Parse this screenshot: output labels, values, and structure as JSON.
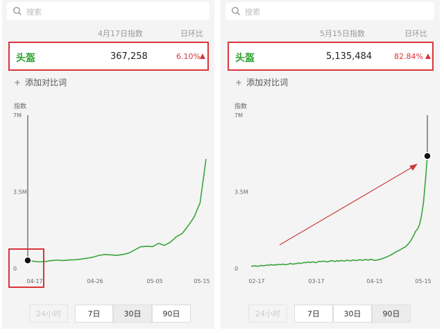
{
  "panels": [
    {
      "search": {
        "placeholder": "搜索"
      },
      "header": {
        "date_col": "4月17日指数",
        "ratio_col": "日环比"
      },
      "row": {
        "keyword": "头盔",
        "value": "367,258",
        "change": "6.10%",
        "direction": "up"
      },
      "add_compare": {
        "plus": "+",
        "label": "添加对比词"
      },
      "chart_data": {
        "type": "line",
        "ylabel": "指数",
        "y_ticks": [
          "7M",
          "3.5M",
          "0"
        ],
        "x_ticks": [
          "04-17",
          "04-26",
          "05-05",
          "05-15"
        ],
        "ylim": [
          0,
          7000000
        ],
        "series": [
          {
            "values": [
              367258,
              330000,
              300000,
              320000,
              360000,
              380000,
              360000,
              390000,
              400000,
              430000,
              470000,
              520000,
              600000,
              640000,
              620000,
              600000,
              640000,
              700000,
              850000,
              990000,
              1010000,
              1000000,
              1150000,
              1050000,
              1200000,
              1450000,
              1600000,
              1950000,
              2350000,
              3000000,
              5000000
            ]
          }
        ],
        "cursor_index": 0,
        "line_color": "#3aa33a",
        "highlight_box": true
      },
      "range_buttons": [
        {
          "label": "24小时",
          "state": "disabled"
        },
        {
          "label": "7日",
          "state": "normal"
        },
        {
          "label": "30日",
          "state": "active"
        },
        {
          "label": "90日",
          "state": "normal"
        }
      ]
    },
    {
      "search": {
        "placeholder": "搜索"
      },
      "header": {
        "date_col": "5月15日指数",
        "ratio_col": "日环比"
      },
      "row": {
        "keyword": "头盔",
        "value": "5,135,484",
        "change": "82.84%",
        "direction": "up"
      },
      "add_compare": {
        "plus": "+",
        "label": "添加对比词"
      },
      "chart_data": {
        "type": "line",
        "ylabel": "指数",
        "y_ticks": [
          "7M",
          "3.5M",
          "0"
        ],
        "x_ticks": [
          "02-17",
          "03-17",
          "04-15",
          "05-15"
        ],
        "ylim": [
          0,
          7000000
        ],
        "series": [
          {
            "values": [
              100000,
              110000,
              120000,
              100000,
              110000,
              140000,
              120000,
              130000,
              160000,
              140000,
              180000,
              150000,
              170000,
              160000,
              190000,
              170000,
              200000,
              180000,
              170000,
              200000,
              230000,
              200000,
              210000,
              220000,
              250000,
              230000,
              240000,
              280000,
              260000,
              300000,
              270000,
              290000,
              300000,
              260000,
              300000,
              330000,
              310000,
              340000,
              320000,
              300000,
              330000,
              360000,
              340000,
              320000,
              360000,
              330000,
              370000,
              350000,
              340000,
              380000,
              360000,
              350000,
              390000,
              370000,
              360000,
              400000,
              390000,
              370000,
              410000,
              400000,
              380000,
              420000,
              400000,
              370000,
              380000,
              400000,
              420000,
              450000,
              480000,
              520000,
              560000,
              600000,
              650000,
              700000,
              760000,
              800000,
              850000,
              900000,
              950000,
              1000000,
              1100000,
              1200000,
              1350000,
              1500000,
              1700000,
              1800000,
              2000000,
              2400000,
              3000000,
              4000000,
              5135484
            ]
          }
        ],
        "cursor_index": 90,
        "line_color": "#3aa33a",
        "arrow": true
      },
      "range_buttons": [
        {
          "label": "24小时",
          "state": "disabled"
        },
        {
          "label": "7日",
          "state": "normal"
        },
        {
          "label": "30日",
          "state": "normal"
        },
        {
          "label": "90日",
          "state": "active"
        }
      ]
    }
  ]
}
